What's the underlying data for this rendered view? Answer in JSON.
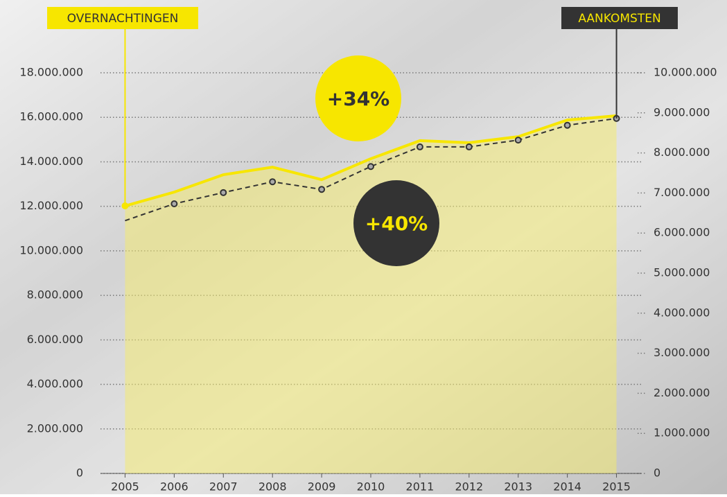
{
  "chart_data": {
    "type": "line",
    "categories": [
      "2005",
      "2006",
      "2007",
      "2008",
      "2009",
      "2010",
      "2011",
      "2012",
      "2013",
      "2014",
      "2015"
    ],
    "series": [
      {
        "name": "OVERNACHTINGEN",
        "color": "#f7e600",
        "axis": "y",
        "values": [
          12020000,
          12640000,
          13420000,
          13760000,
          13200000,
          14140000,
          14950000,
          14860000,
          15130000,
          15880000,
          16070000
        ]
      },
      {
        "name": "AANKOMSTEN",
        "color": "#333333",
        "axis": "y2",
        "values": [
          6310000,
          6730000,
          7010000,
          7280000,
          7090000,
          7660000,
          8150000,
          8150000,
          8320000,
          8690000,
          8860000
        ]
      }
    ],
    "ylim": [
      0,
      18000000
    ],
    "yticks": [
      {
        "value": 0,
        "label": "0"
      },
      {
        "value": 2000000,
        "label": "2.000.000"
      },
      {
        "value": 4000000,
        "label": "4.000.000"
      },
      {
        "value": 6000000,
        "label": "6.000.000"
      },
      {
        "value": 8000000,
        "label": "8.000.000"
      },
      {
        "value": 10000000,
        "label": "10.000.000"
      },
      {
        "value": 12000000,
        "label": "12.000.000"
      },
      {
        "value": 14000000,
        "label": "14.000.000"
      },
      {
        "value": 16000000,
        "label": "16.000.000"
      },
      {
        "value": 18000000,
        "label": "18.000.000"
      }
    ],
    "y2lim": [
      0,
      10000000
    ],
    "y2ticks": [
      {
        "value": 0,
        "label": "0"
      },
      {
        "value": 1000000,
        "label": "1.000.000"
      },
      {
        "value": 2000000,
        "label": "2.000.000"
      },
      {
        "value": 3000000,
        "label": "3.000.000"
      },
      {
        "value": 4000000,
        "label": "4.000.000"
      },
      {
        "value": 5000000,
        "label": "5.000.000"
      },
      {
        "value": 6000000,
        "label": "6.000.000"
      },
      {
        "value": 7000000,
        "label": "7.000.000"
      },
      {
        "value": 8000000,
        "label": "8.000.000"
      },
      {
        "value": 9000000,
        "label": "9.000.000"
      },
      {
        "value": 10000000,
        "label": "10.000.000"
      }
    ],
    "grid": true,
    "annotations": [
      "+34%",
      "+40%"
    ]
  }
}
